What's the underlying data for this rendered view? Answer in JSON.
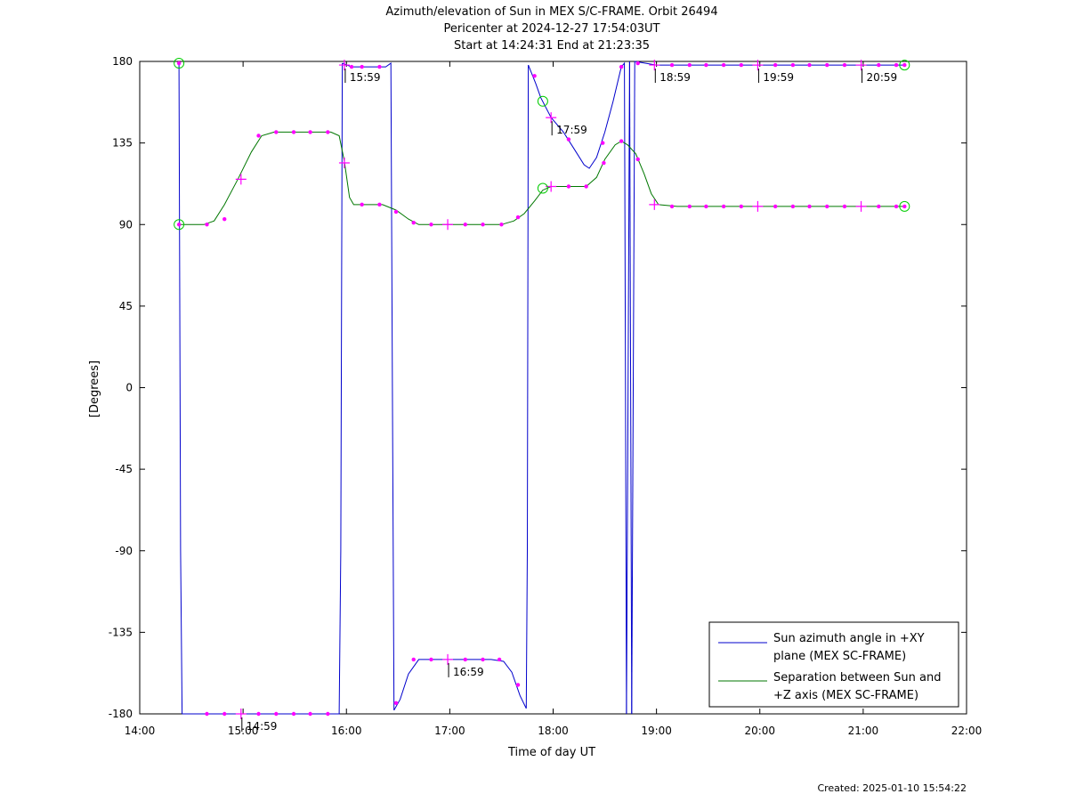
{
  "header": {
    "title_line1": "Azimuth/elevation of Sun in MEX S/C-FRAME.  Orbit 26494",
    "title_line2": "Pericenter at 2024-12-27 17:54:03UT",
    "title_line3": "Start at 14:24:31 End at 21:23:35"
  },
  "footer": {
    "created": "Created: 2025-01-10 15:54:22"
  },
  "chart_data": {
    "type": "line",
    "xlabel": "Time of day UT",
    "ylabel": "[Degrees]",
    "xlim": [
      14.0,
      22.0
    ],
    "ylim": [
      -180,
      180
    ],
    "x_ticks": [
      14,
      15,
      16,
      17,
      18,
      19,
      20,
      21,
      22
    ],
    "x_tick_labels": [
      "14:00",
      "15:00",
      "16:00",
      "17:00",
      "18:00",
      "19:00",
      "20:00",
      "21:00",
      "22:00"
    ],
    "y_ticks": [
      180,
      135,
      90,
      45,
      0,
      -45,
      -90,
      -135,
      -180
    ],
    "y_tick_labels": [
      "180",
      "135",
      "90",
      "45",
      "0",
      "-45",
      "-90",
      "-135",
      "-180"
    ],
    "grid": false,
    "legend_position": "bottom-right",
    "colors": {
      "azimuth": "#0000cc",
      "separation": "#007700",
      "markers": "#ff00ff",
      "endpoints": "#00cc00"
    },
    "series": [
      {
        "name": "Sun azimuth angle in +XY plane (MEX SC-FRAME)",
        "legend_line1": "Sun azimuth angle in +XY",
        "legend_line2": "plane (MEX SC-FRAME)",
        "color": "#0000cc",
        "segments": [
          [
            [
              14.38,
              179
            ],
            [
              14.395,
              -90
            ],
            [
              14.41,
              -180
            ]
          ],
          [
            [
              14.41,
              -180
            ],
            [
              15.5,
              -180
            ],
            [
              15.93,
              -180
            ],
            [
              15.945,
              -90
            ],
            [
              15.96,
              179
            ]
          ],
          [
            [
              15.96,
              179
            ],
            [
              16.05,
              177
            ],
            [
              16.2,
              177
            ],
            [
              16.38,
              177
            ],
            [
              16.43,
              179
            ],
            [
              16.445,
              0
            ],
            [
              16.46,
              -178
            ]
          ],
          [
            [
              16.46,
              -178
            ],
            [
              16.52,
              -172
            ],
            [
              16.6,
              -158
            ],
            [
              16.7,
              -150
            ],
            [
              16.85,
              -150
            ],
            [
              17.0,
              -150
            ],
            [
              17.2,
              -150
            ],
            [
              17.4,
              -150
            ],
            [
              17.52,
              -151
            ],
            [
              17.6,
              -157
            ],
            [
              17.68,
              -170
            ],
            [
              17.74,
              -177
            ],
            [
              17.75,
              -90
            ],
            [
              17.76,
              178
            ]
          ],
          [
            [
              17.76,
              178
            ],
            [
              17.83,
              168
            ],
            [
              17.88,
              160
            ],
            [
              17.98,
              149
            ],
            [
              18.1,
              141
            ],
            [
              18.2,
              132
            ],
            [
              18.3,
              123
            ],
            [
              18.35,
              121
            ],
            [
              18.42,
              127
            ],
            [
              18.5,
              141
            ],
            [
              18.58,
              158
            ],
            [
              18.66,
              177
            ],
            [
              18.69,
              179
            ],
            [
              18.7,
              0
            ],
            [
              18.71,
              -180
            ]
          ],
          [
            [
              18.71,
              -180
            ],
            [
              18.725,
              0
            ],
            [
              18.74,
              180
            ]
          ],
          [
            [
              18.74,
              180
            ],
            [
              18.76,
              -180
            ]
          ],
          [
            [
              18.76,
              -180
            ],
            [
              18.775,
              0
            ],
            [
              18.79,
              180
            ]
          ],
          [
            [
              18.79,
              180
            ],
            [
              19.0,
              178
            ],
            [
              20.0,
              178
            ],
            [
              21.0,
              178
            ],
            [
              21.4,
              178
            ]
          ]
        ]
      },
      {
        "name": "Separation between Sun and +Z axis (MEX SC-FRAME)",
        "legend_line1": "Separation between Sun and",
        "legend_line2": "+Z axis (MEX SC-FRAME)",
        "color": "#007700",
        "segments": [
          [
            [
              14.38,
              90
            ],
            [
              14.5,
              90
            ],
            [
              14.62,
              90
            ],
            [
              14.72,
              92
            ],
            [
              14.82,
              101
            ],
            [
              14.95,
              115
            ],
            [
              15.08,
              130
            ],
            [
              15.18,
              139
            ],
            [
              15.3,
              141
            ],
            [
              15.5,
              141
            ],
            [
              15.7,
              141
            ],
            [
              15.85,
              141
            ],
            [
              15.93,
              139
            ],
            [
              15.98,
              125
            ],
            [
              16.03,
              105
            ],
            [
              16.07,
              101
            ],
            [
              16.2,
              101
            ],
            [
              16.35,
              101
            ],
            [
              16.48,
              98
            ],
            [
              16.6,
              93
            ],
            [
              16.7,
              90
            ],
            [
              16.9,
              90
            ],
            [
              17.1,
              90
            ],
            [
              17.3,
              90
            ],
            [
              17.5,
              90
            ],
            [
              17.62,
              92
            ],
            [
              17.72,
              96
            ],
            [
              17.82,
              103
            ],
            [
              17.9,
              109
            ],
            [
              17.98,
              111
            ],
            [
              18.1,
              111
            ],
            [
              18.32,
              111
            ],
            [
              18.42,
              116
            ],
            [
              18.5,
              126
            ],
            [
              18.6,
              134
            ],
            [
              18.66,
              136
            ],
            [
              18.72,
              134
            ],
            [
              18.8,
              129
            ],
            [
              18.88,
              118
            ],
            [
              18.95,
              107
            ],
            [
              19.02,
              101
            ],
            [
              19.2,
              100
            ],
            [
              19.5,
              100
            ],
            [
              20.0,
              100
            ],
            [
              20.5,
              100
            ],
            [
              21.0,
              100
            ],
            [
              21.4,
              100
            ]
          ]
        ]
      }
    ],
    "azimuth_markers": [
      [
        14.38,
        179
      ],
      [
        14.65,
        -180
      ],
      [
        14.82,
        -180
      ],
      [
        15.15,
        -180
      ],
      [
        15.32,
        -180
      ],
      [
        15.49,
        -180
      ],
      [
        15.65,
        -180
      ],
      [
        15.82,
        -180
      ],
      [
        16.05,
        177
      ],
      [
        16.15,
        177
      ],
      [
        16.32,
        177
      ],
      [
        16.48,
        -174
      ],
      [
        16.65,
        -150
      ],
      [
        16.82,
        -150
      ],
      [
        17.15,
        -150
      ],
      [
        17.32,
        -150
      ],
      [
        17.48,
        -150
      ],
      [
        17.66,
        -164
      ],
      [
        17.82,
        172
      ],
      [
        18.15,
        137
      ],
      [
        18.48,
        135
      ],
      [
        18.66,
        177
      ],
      [
        18.82,
        179
      ],
      [
        19.15,
        178
      ],
      [
        19.32,
        178
      ],
      [
        19.48,
        178
      ],
      [
        19.65,
        178
      ],
      [
        19.82,
        178
      ],
      [
        20.15,
        178
      ],
      [
        20.32,
        178
      ],
      [
        20.48,
        178
      ],
      [
        20.65,
        178
      ],
      [
        20.82,
        178
      ],
      [
        21.15,
        178
      ],
      [
        21.32,
        178
      ],
      [
        21.4,
        178
      ]
    ],
    "azimuth_crosses": [
      [
        14.98,
        -180
      ],
      [
        15.98,
        178
      ],
      [
        16.98,
        -150
      ],
      [
        17.98,
        149
      ],
      [
        18.98,
        178
      ],
      [
        19.98,
        178
      ],
      [
        20.98,
        178
      ]
    ],
    "separation_markers": [
      [
        14.38,
        90
      ],
      [
        14.65,
        90
      ],
      [
        14.82,
        93
      ],
      [
        15.15,
        139
      ],
      [
        15.32,
        141
      ],
      [
        15.49,
        141
      ],
      [
        15.65,
        141
      ],
      [
        15.82,
        141
      ],
      [
        16.15,
        101
      ],
      [
        16.32,
        101
      ],
      [
        16.48,
        97
      ],
      [
        16.65,
        91
      ],
      [
        16.82,
        90
      ],
      [
        17.15,
        90
      ],
      [
        17.32,
        90
      ],
      [
        17.5,
        90
      ],
      [
        17.66,
        94
      ],
      [
        18.15,
        111
      ],
      [
        18.32,
        111
      ],
      [
        18.49,
        124
      ],
      [
        18.66,
        136
      ],
      [
        18.82,
        126
      ],
      [
        19.15,
        100
      ],
      [
        19.32,
        100
      ],
      [
        19.48,
        100
      ],
      [
        19.65,
        100
      ],
      [
        19.82,
        100
      ],
      [
        20.15,
        100
      ],
      [
        20.32,
        100
      ],
      [
        20.48,
        100
      ],
      [
        20.65,
        100
      ],
      [
        20.82,
        100
      ],
      [
        21.15,
        100
      ],
      [
        21.32,
        100
      ],
      [
        21.4,
        100
      ]
    ],
    "separation_crosses": [
      [
        14.98,
        115
      ],
      [
        15.98,
        124
      ],
      [
        16.98,
        90
      ],
      [
        17.98,
        111
      ],
      [
        18.98,
        101
      ],
      [
        19.98,
        100
      ],
      [
        20.98,
        100
      ]
    ],
    "endpoint_circles": [
      [
        14.38,
        90
      ],
      [
        14.38,
        179
      ],
      [
        17.9,
        158
      ],
      [
        17.9,
        110
      ],
      [
        21.4,
        178
      ],
      [
        21.4,
        100
      ]
    ],
    "annotations": [
      {
        "label": "14:59",
        "x": 14.98,
        "y": -180,
        "side": "below"
      },
      {
        "label": "15:59",
        "x": 15.98,
        "y": 178,
        "side": "below"
      },
      {
        "label": "16:59",
        "x": 16.98,
        "y": -150,
        "side": "below"
      },
      {
        "label": "17:59",
        "x": 17.98,
        "y": 149,
        "side": "below"
      },
      {
        "label": "18:59",
        "x": 18.98,
        "y": 178,
        "side": "below"
      },
      {
        "label": "19:59",
        "x": 19.98,
        "y": 178,
        "side": "below"
      },
      {
        "label": "20:59",
        "x": 20.98,
        "y": 178,
        "side": "below"
      }
    ]
  }
}
